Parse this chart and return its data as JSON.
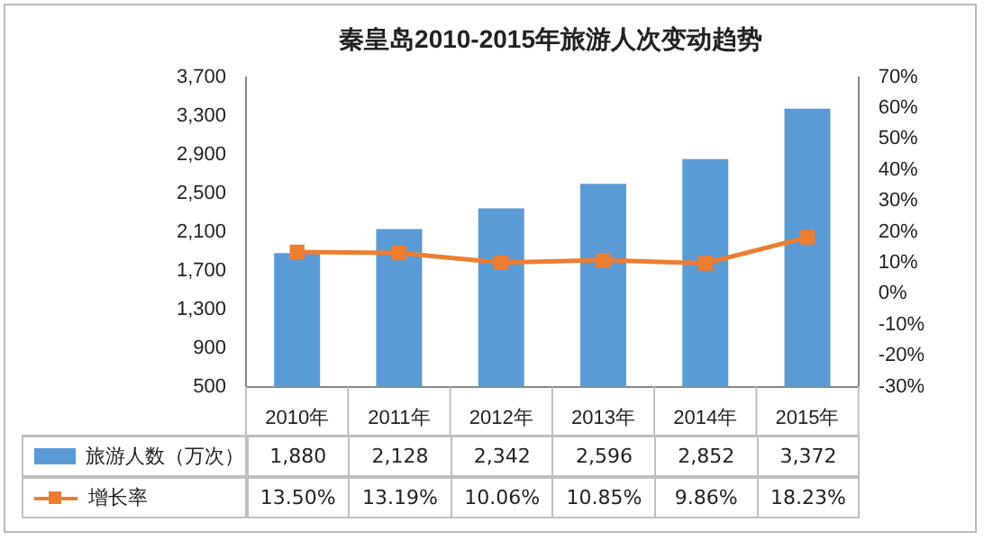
{
  "chart_data": {
    "type": "bar",
    "title": "秦皇岛2010-2015年旅游人次变动趋势",
    "categories": [
      "2010年",
      "2011年",
      "2012年",
      "2013年",
      "2014年",
      "2015年"
    ],
    "series": [
      {
        "name": "旅游人数（万次）",
        "type": "bar",
        "color": "#5b9bd5",
        "values": [
          1880,
          2128,
          2342,
          2596,
          2852,
          3372
        ],
        "value_labels": [
          "1,880",
          "2,128",
          "2,342",
          "2,596",
          "2,852",
          "3,372"
        ]
      },
      {
        "name": "增长率",
        "type": "line",
        "axis": "y2",
        "color": "#ed7d31",
        "values": [
          13.5,
          13.19,
          10.06,
          10.85,
          9.86,
          18.23
        ],
        "value_labels": [
          "13.50%",
          "13.19%",
          "10.06%",
          "10.85%",
          "9.86%",
          "18.23%"
        ]
      }
    ],
    "ylim": [
      500,
      3700
    ],
    "yticks": [
      500,
      900,
      {
        "value": 1300,
        "label": "1,300"
      },
      {
        "value": 1700,
        "label": "1,700"
      },
      {
        "value": 2100,
        "label": "2,100"
      },
      {
        "value": 2500,
        "label": "2,500"
      },
      {
        "value": 2900,
        "label": "2,900"
      },
      {
        "value": 3300,
        "label": "3,300"
      },
      {
        "value": 3700,
        "label": "3,700"
      }
    ],
    "y2lim": [
      -30,
      70
    ],
    "y2ticks": [
      {
        "value": -30,
        "label": "-30%"
      },
      {
        "value": -20,
        "label": "-20%"
      },
      {
        "value": -10,
        "label": "-10%"
      },
      {
        "value": 0,
        "label": "0%"
      },
      {
        "value": 10,
        "label": "10%"
      },
      {
        "value": 20,
        "label": "20%"
      },
      {
        "value": 30,
        "label": "30%"
      },
      {
        "value": 40,
        "label": "40%"
      },
      {
        "value": 50,
        "label": "50%"
      },
      {
        "value": 60,
        "label": "60%"
      },
      {
        "value": 70,
        "label": "70%"
      }
    ],
    "grid": false,
    "legend": "bottom",
    "marker": "square",
    "line_style": "solid"
  }
}
